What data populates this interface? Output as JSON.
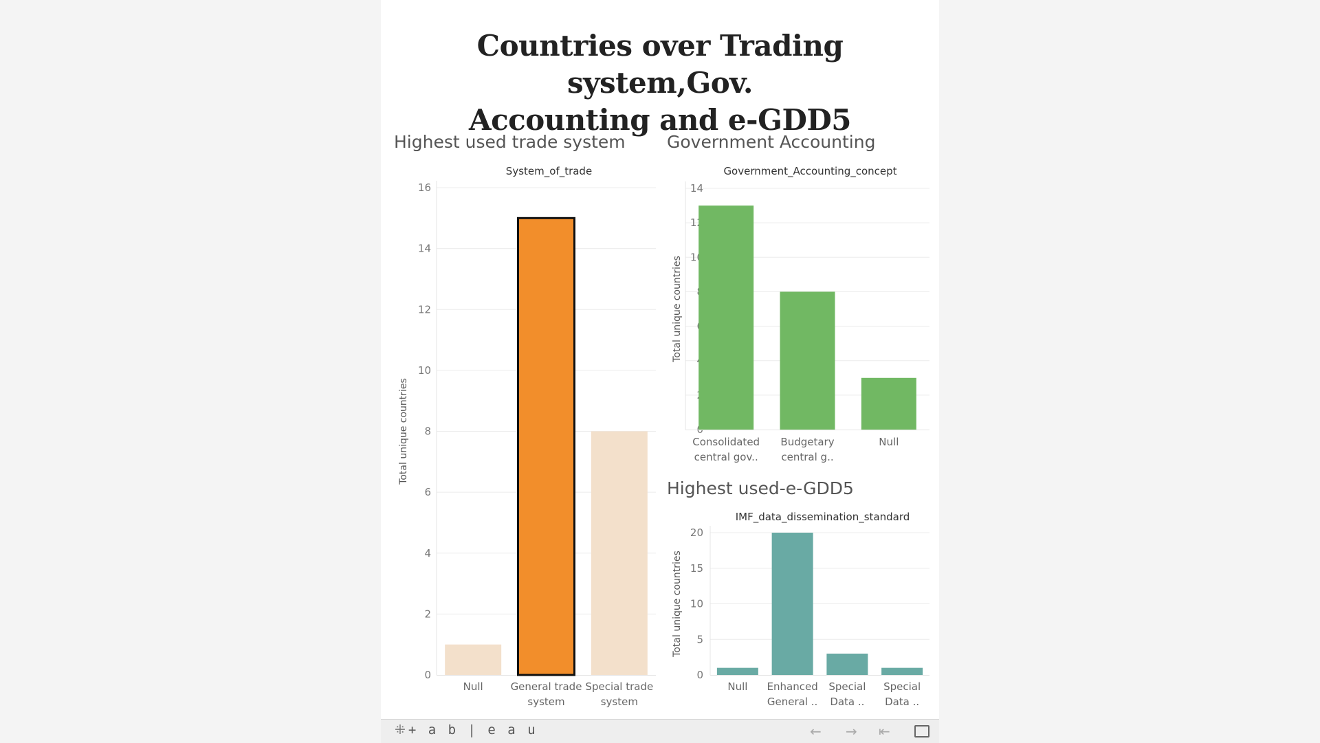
{
  "dashboard": {
    "title_line1": "Countries over Trading system,Gov.",
    "title_line2": "Accounting and e-GDD5"
  },
  "chart_data": [
    {
      "type": "bar",
      "panel_title": "Highest used trade system",
      "header": "System_of_trade",
      "ylabel": "Total unique countries",
      "categories": [
        [
          "Null"
        ],
        [
          "General trade",
          "system"
        ],
        [
          "Special trade",
          "system"
        ]
      ],
      "values": [
        1,
        15,
        8
      ],
      "ylim": [
        0,
        16
      ],
      "yticks": [
        0,
        2,
        4,
        6,
        8,
        10,
        12,
        14,
        16
      ],
      "colors": [
        "#f3e0cb",
        "#f28e2b",
        "#f3e0cb"
      ],
      "highlighted_index": 1,
      "grid": true
    },
    {
      "type": "bar",
      "panel_title": "Government Accounting",
      "header": "Government_Accounting_concept",
      "ylabel": "Total unique countries",
      "categories": [
        [
          "Consolidated",
          "central gov.."
        ],
        [
          "Budgetary",
          "central g.."
        ],
        [
          "Null"
        ]
      ],
      "values": [
        13,
        8,
        3
      ],
      "ylim": [
        0,
        14
      ],
      "yticks": [
        0,
        2,
        4,
        6,
        8,
        10,
        12,
        14
      ],
      "colors": [
        "#71b863",
        "#71b863",
        "#71b863"
      ],
      "grid": true
    },
    {
      "type": "bar",
      "panel_title": "Highest used-e-GDD5",
      "header": "IMF_data_dissemination_standard",
      "ylabel": "Total unique countries",
      "categories": [
        [
          "Null"
        ],
        [
          "Enhanced",
          "General .."
        ],
        [
          "Special",
          "Data .."
        ],
        [
          "Special",
          "Data .."
        ]
      ],
      "values": [
        1,
        20,
        3,
        1
      ],
      "ylim": [
        0,
        20
      ],
      "yticks": [
        0,
        5,
        10,
        15,
        20
      ],
      "colors": [
        "#69aaa4",
        "#69aaa4",
        "#69aaa4",
        "#69aaa4"
      ],
      "grid": true
    }
  ],
  "footer": {
    "logo_text": "+ a b | e a u",
    "back_icon": "arrow-left-icon",
    "forward_icon": "arrow-right-icon",
    "reset_icon": "revert-to-start-icon",
    "fullscreen_icon": "fullscreen-icon"
  }
}
